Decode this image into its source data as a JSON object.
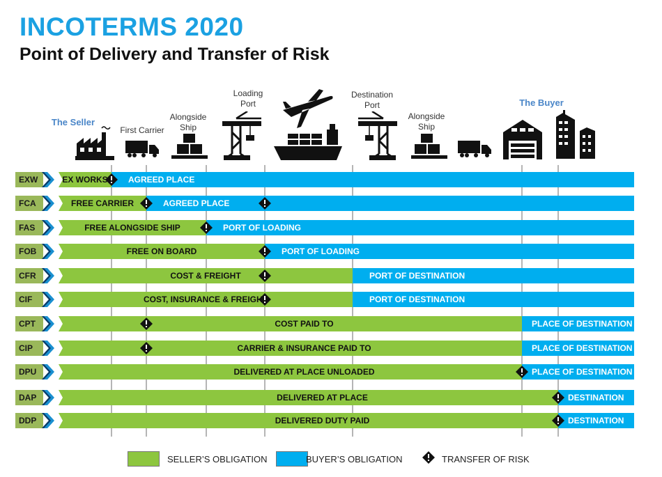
{
  "title": "INCOTERMS 2020",
  "subtitle": "Point of Delivery and Transfer of Risk",
  "colors": {
    "seller": "#8dc63f",
    "buyer": "#00aeef",
    "title": "#1ba1e2",
    "code_box": "#9ab85a"
  },
  "stages": [
    {
      "key": "seller",
      "label": "The Seller",
      "party": true,
      "icon": "factory-icon"
    },
    {
      "key": "first_carrier",
      "label": "First Carrier",
      "icon": "truck-icon"
    },
    {
      "key": "alongside_ship",
      "label": "Alongside Ship",
      "icon": "boxes-icon"
    },
    {
      "key": "loading_port",
      "label": "Loading Port",
      "icon": "crane-icon"
    },
    {
      "key": "transport",
      "label": "",
      "icon": "plane-and-ship-icon"
    },
    {
      "key": "destination_port",
      "label": "Destination Port",
      "icon": "crane-icon"
    },
    {
      "key": "alongside_ship_dest",
      "label": "Alongside Ship",
      "icon": "boxes-icon"
    },
    {
      "key": "truck_dest",
      "label": "",
      "icon": "truck-icon"
    },
    {
      "key": "buyer",
      "label": "The Buyer",
      "party": true,
      "icon": "warehouse-icon"
    },
    {
      "key": "buyer_building",
      "label": "",
      "icon": "buildings-icon"
    }
  ],
  "terms": [
    {
      "code": "EXW",
      "seller_label": "EX WORKS",
      "buyer_label": "AGREED PLACE",
      "seller_until": "seller",
      "risk": [
        "seller"
      ]
    },
    {
      "code": "FCA",
      "seller_label": "FREE CARRIER",
      "buyer_label": "AGREED PLACE",
      "seller_until": "first_carrier",
      "risk": [
        "first_carrier",
        "loading_port"
      ]
    },
    {
      "code": "FAS",
      "seller_label": "FREE ALONGSIDE SHIP",
      "buyer_label": "PORT OF LOADING",
      "seller_until": "alongside_ship",
      "risk": [
        "alongside_ship"
      ]
    },
    {
      "code": "FOB",
      "seller_label": "FREE  ON BOARD",
      "buyer_label": "PORT OF LOADING",
      "seller_until": "loading_port",
      "risk": [
        "loading_port"
      ]
    },
    {
      "code": "CFR",
      "seller_label": "COST & FREIGHT",
      "buyer_label": "PORT OF DESTINATION",
      "seller_until": "destination_port",
      "risk": [
        "loading_port"
      ]
    },
    {
      "code": "CIF",
      "seller_label": "COST, INSURANCE & FREIGHT",
      "buyer_label": "PORT OF DESTINATION",
      "seller_until": "destination_port",
      "risk": [
        "loading_port"
      ]
    },
    {
      "code": "CPT",
      "seller_label": "COST PAID TO",
      "buyer_label": "PLACE OF DESTINATION",
      "seller_until": "buyer",
      "risk": [
        "first_carrier"
      ]
    },
    {
      "code": "CIP",
      "seller_label": "CARRIER & INSURANCE PAID TO",
      "buyer_label": "PLACE OF DESTINATION",
      "seller_until": "buyer",
      "risk": [
        "first_carrier"
      ]
    },
    {
      "code": "DPU",
      "seller_label": "DELIVERED AT PLACE UNLOADED",
      "buyer_label": "PLACE OF DESTINATION",
      "seller_until": "buyer",
      "risk": [
        "buyer"
      ]
    },
    {
      "code": "DAP",
      "seller_label": "DELIVERED AT PLACE",
      "buyer_label": "DESTINATION",
      "seller_until": "buyer_building",
      "risk": [
        "buyer_building"
      ]
    },
    {
      "code": "DDP",
      "seller_label": "DELIVERED DUTY PAID",
      "buyer_label": "DESTINATION",
      "seller_until": "buyer_building",
      "risk": [
        "buyer_building"
      ]
    }
  ],
  "legend": {
    "seller": "SELLER’S OBLIGATION",
    "buyer": "BUYER’S OBLIGATION",
    "risk": "TRANSFER OF RISK"
  }
}
